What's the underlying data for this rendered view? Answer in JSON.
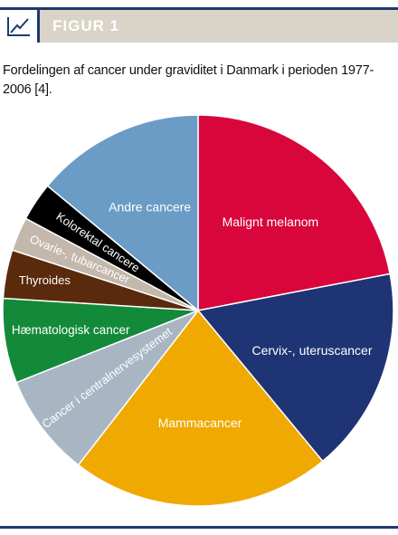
{
  "figure": {
    "label": "FIGUR 1",
    "caption": "Fordelingen af cancer under graviditet i Danmark i perioden 1977-2006 [4]."
  },
  "chart_data": {
    "type": "pie",
    "title": "",
    "slices": [
      {
        "label": "Malignt melanom",
        "value": 22.0,
        "color": "#d8063b",
        "text_color": "#ffffff"
      },
      {
        "label": "Cervix-, uteruscancer",
        "value": 17.0,
        "color": "#1e3474",
        "text_color": "#ffffff"
      },
      {
        "label": "Mammacancer",
        "value": 21.5,
        "color": "#f0a900",
        "text_color": "#ffffff"
      },
      {
        "label": "Cancer i centralnervesystemet",
        "value": 8.5,
        "color": "#a8b6c3",
        "text_color": "#ffffff"
      },
      {
        "label": "Hæmatologisk cancer",
        "value": 7.0,
        "color": "#138a39",
        "text_color": "#ffffff"
      },
      {
        "label": "Thyroides",
        "value": 4.0,
        "color": "#5a2a0c",
        "text_color": "#ffffff"
      },
      {
        "label": "Ovarie-, tubarcancer",
        "value": 2.8,
        "color": "#c3b8ab",
        "text_color": "#ffffff"
      },
      {
        "label": "Kolorektal cancere",
        "value": 3.2,
        "color": "#000000",
        "text_color": "#ffffff"
      },
      {
        "label": "Andre cancere",
        "value": 14.0,
        "color": "#6a9cc6",
        "text_color": "#ffffff"
      }
    ],
    "start_angle_deg": 0,
    "direction": "clockwise",
    "legend": "none",
    "labels": "inside"
  },
  "colors": {
    "rule": "#1f3a6e",
    "header_band": "#d9d3c8"
  }
}
